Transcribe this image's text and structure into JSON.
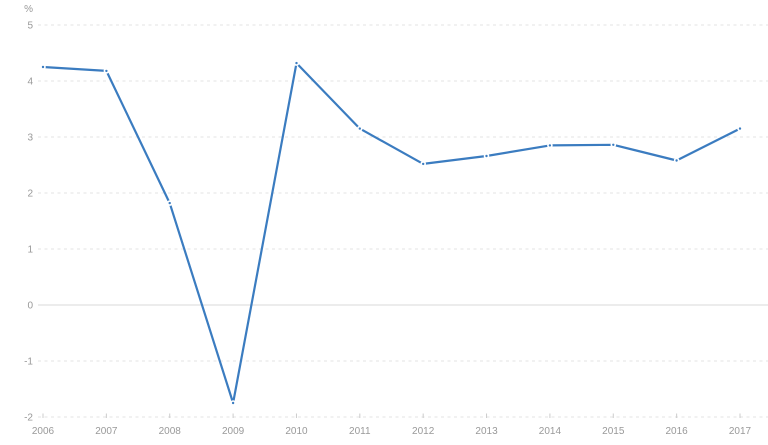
{
  "chart_data": {
    "type": "line",
    "title": "",
    "ylabel": "%",
    "xlabel": "",
    "x": [
      "2006",
      "2007",
      "2008",
      "2009",
      "2010",
      "2011",
      "2012",
      "2013",
      "2014",
      "2015",
      "2016",
      "2017"
    ],
    "values": [
      4.25,
      4.18,
      1.82,
      -1.75,
      4.32,
      3.15,
      2.52,
      2.66,
      2.85,
      2.86,
      2.58,
      3.15
    ],
    "ylim": [
      -2,
      5
    ],
    "yticks": [
      5,
      4,
      3,
      2,
      1,
      0,
      -1,
      -2
    ],
    "grid": "horizontal-dashed",
    "zero_line": "solid",
    "legend": "none",
    "marker": "dot"
  },
  "colors": {
    "line": "#3b7cc0",
    "marker": "#3b7cc0",
    "marker_halo": "#ffffff",
    "grid": "#e3e3e3",
    "zero_line": "#d9d9d9",
    "axis_tick": "#cccccc",
    "label": "#999999",
    "background": "#ffffff"
  }
}
